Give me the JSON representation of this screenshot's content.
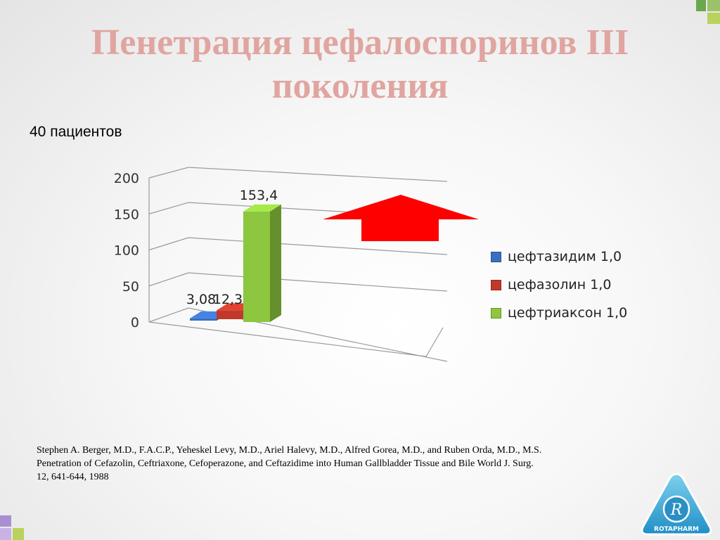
{
  "slide": {
    "title": "Пенетрация цефалоспоринов  III поколения",
    "subtitle": "40 пациентов",
    "citation": "Stephen A. Berger, M.D., F.A.C.P., Yeheskel Levy, M.D., Ariel Halevy, M.D., Alfred Gorea, M.D., and Ruben Orda, M.D., M.S. Penetration of Cefazolin, Ceftriaxone, Cefoperazone, and Ceftazidime into Human Gallbladder Tissue and Bile World J. Surg. 12, 641-644, 1988",
    "logo_text": "ROTAPHARM"
  },
  "colors": {
    "title": "#e0a5a0",
    "arrow": "#ff0000",
    "corner_green": "#8dc63f",
    "corner_purple": "#a98fd1"
  },
  "chart_data": {
    "type": "bar",
    "style": "3d-column",
    "y_ticks": [
      "200",
      "150",
      "100",
      "50",
      "0"
    ],
    "ylim": [
      0,
      200
    ],
    "grid": true,
    "legend_position": "right",
    "series": [
      {
        "name": "цефтазидим 1,0",
        "value": 3.08,
        "label": "3,08",
        "color": "#3a6fc0"
      },
      {
        "name": "цефазолин 1,0",
        "value": 12.3,
        "label": "12,3",
        "color": "#c0392b"
      },
      {
        "name": "цефтриаксон 1,0",
        "value": 153.4,
        "label": "153,4",
        "color": "#8dc63f"
      }
    ],
    "annotation": "red-up-arrow"
  }
}
